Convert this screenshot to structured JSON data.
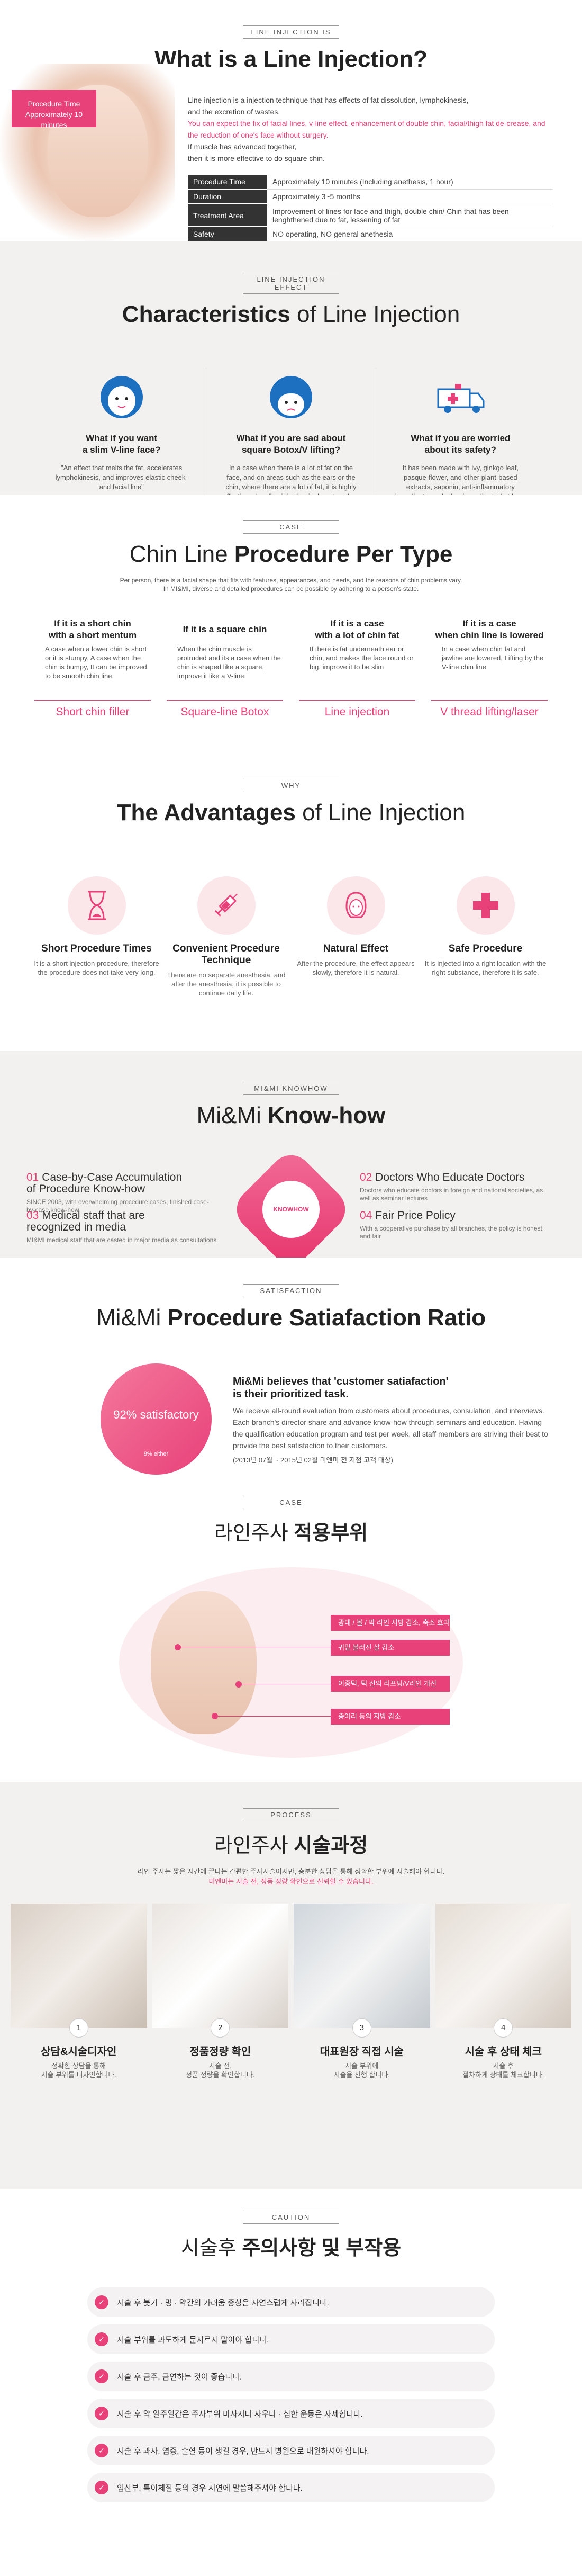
{
  "s1": {
    "tag": "LINE INJECTION IS",
    "title": "What is a Line Injection?",
    "badge_line1": "Procedure Time",
    "badge_line2": "Approximately 10 minutes",
    "intro_1": "Line injection is a injection technique that has effects of fat dissolution, lymphokinesis,",
    "intro_2": "and the excretion of wastes.",
    "intro_3": "You can expect the fix of facial lines, v-line effect, enhancement of double chin, facial/thigh fat de-crease, and the reduction of one's face without surgery.",
    "intro_4": "If muscle has advanced together,",
    "intro_5": "then it is more effective to do square chin.",
    "rows": [
      {
        "k": "Procedure Time",
        "v": "Approximately 10 minutes (Including anethesis, 1 hour)"
      },
      {
        "k": "Duration",
        "v": "Approximately 3~5 months"
      },
      {
        "k": "Treatment Area",
        "v": "Improvement of lines for face and thigh, double chin/ Chin that has been lenghthened due to fat, lessening of fat"
      },
      {
        "k": "Safety",
        "v": "NO operating, NO general anethesia"
      }
    ]
  },
  "s2": {
    "tag": "LINE INJECTION EFFECT",
    "title_b": "Characteristics",
    "title_r": " of Line Injection",
    "cols": [
      {
        "h1": "What if you want",
        "h2": "a slim V-line face?",
        "p": "\"An effect that melts the fat, accelerates lymphokinesis, and improves elastic cheek-and facial line\""
      },
      {
        "h1": "What if you are sad about",
        "h2": "square Botox/V lifting?",
        "p": "In a case when there is a lot of fat on the face, and on areas such as the ears or the chin, where there are a lot of fat, it is highly effective when line injection is done together."
      },
      {
        "h1": "What if you are worried",
        "h2": "about its safety?",
        "p": "It has been made with ivy, ginkgo leaf, pasque-flower, and other plant-based extracts, saponin, anti-inflammatory ingredients, and other ingredients that have been certified and are safe."
      }
    ]
  },
  "s3": {
    "tag": "CASE",
    "title_r": "Chin Line ",
    "title_b": "Procedure Per Type",
    "sub_1": "Per person, there is a facial shape that fits with features, appearances, and needs, and the reasons of chin problems vary.",
    "sub_2": "In MI&MI, diverse and detailed procedures can be possible by adhering to a person's state.",
    "cols": [
      {
        "h1": "If it is a short chin",
        "h2": "with a short mentum",
        "p": "A case when a lower chin is short or it is stumpy, A case when the chin is bumpy, It can be improved to be smooth chin line.",
        "lbl": "Short chin filler"
      },
      {
        "h1": "If it is a square chin",
        "h2": "",
        "p": "When the chin muscle is protruded and its a case when the chin is shaped like a square, improve it like a V-line.",
        "lbl": "Square-line Botox"
      },
      {
        "h1": "If it is a case",
        "h2": "with a lot of chin fat",
        "p": "If there is fat underneath ear or chin, and makes the face round or big, improve it to be slim",
        "lbl": "Line injection"
      },
      {
        "h1": "If it is a case",
        "h2": "when chin line is lowered",
        "p": "In a case when chin fat and jawline are lowered, Lifting by the V-line chin line",
        "lbl": "V thread lifting/laser"
      }
    ]
  },
  "s4": {
    "tag": "WHY",
    "title_b": "The Advantages",
    "title_r": " of Line Injection",
    "cols": [
      {
        "h": "Short Procedure Times",
        "p": "It is a short injection procedure, therefore the procedure does not take very long."
      },
      {
        "h": "Convenient Procedure Technique",
        "p": "There are no separate anesthesia, and after the anesthesia, it is possible to continue daily life."
      },
      {
        "h": "Natural Effect",
        "p": "After the procedure, the effect appears slowly, therefore it is natural."
      },
      {
        "h": "Safe Procedure",
        "p": "It is injected into a right location with the right substance, therefore it is safe."
      }
    ]
  },
  "s5": {
    "tag": "MI&MI KNOWHOW",
    "title_r": "Mi&Mi ",
    "title_b": "Know-how",
    "center": "KNOWHOW",
    "items": [
      {
        "n": "01",
        "t1": "Case-by-Case Accumulation",
        "t2": "of Procedure Know-how",
        "d": "SINCE 2003, with overwhelming procedure cases, finished case-by-case know-how"
      },
      {
        "n": "02",
        "t1": "Doctors Who Educate Doctors",
        "t2": "",
        "d": "Doctors who educate doctors in foreign and national societies, as well as seminar lectures"
      },
      {
        "n": "03",
        "t1": "Medical staff that are",
        "t2": "recognized in media",
        "d": "MI&MI medical staff that are casted in major media as consultations"
      },
      {
        "n": "04",
        "t1": "Fair Price Policy",
        "t2": "",
        "d": "With a cooperative purchase by all branches, the policy is honest and fair"
      }
    ]
  },
  "s6": {
    "tag": "SATISFACTION",
    "title_r": "Mi&Mi ",
    "title_b": "Procedure Satiafaction Ratio",
    "circle_big": "92% satisfactory",
    "circle_small": "8% either",
    "h3_1": "Mi&Mi believes that 'customer satiafaction'",
    "h3_2": "is their prioritized task.",
    "p": "We receive all-round evaluation from customers about procedures, consulation, and interviews. Each branch's director share and advance know-how through seminars and education. Having the qualification education program and test per week, all staff members are striving their best to provide the best satisfaction to their customers.",
    "note": "(2013년 07월 ~ 2015년 02월 미엔미 전 지점 고객 대상)"
  },
  "s7": {
    "tag": "CASE",
    "title_r": "라인주사 ",
    "title_b": "적용부위",
    "pills": [
      "광대 / 볼 / 팍 라인 지방 감소, 축소 효과",
      "귀밑 불러진 살 감소",
      "이중턱, 턱 선의 리프팅/V라인 개선",
      "종아리 등의 지방 감소"
    ]
  },
  "s8": {
    "tag": "PROCESS",
    "title_r": "라인주사 ",
    "title_b": "시술과정",
    "sub_1": "라인 주사는 짧은 시간에 끝나는 간편한 주사시술이지만, 충분한 상담을 통해 정확한 부위에 시술해야 합니다.",
    "sub_2": "미엔미는 시술 전, 정품 정량 확인으로 신뢰할 수 있습니다.",
    "steps": [
      {
        "n": "1",
        "h": "상담&시술디자인",
        "p1": "정확한 상담을 통해",
        "p2": "시술 부위를 디자인합니다."
      },
      {
        "n": "2",
        "h": "정품정량 확인",
        "p1": "시술 전,",
        "p2": "정품 정량을 확인합니다."
      },
      {
        "n": "3",
        "h": "대표원장 직접 시술",
        "p1": "시술 부위에",
        "p2": "시술을 진행 합니다."
      },
      {
        "n": "4",
        "h": "시술 후 상태 체크",
        "p1": "시술 후",
        "p2": "절차하게 상태를 체크합니다."
      }
    ]
  },
  "s9": {
    "tag": "CAUTION",
    "title_r": "시술후 ",
    "title_b": "주의사항 및 부작용",
    "items": [
      "시술 후 붓기 · 멍 · 약간의 가려움 증상은 자연스럽게 사라집니다.",
      "시술 부위를 과도하게 문지르지 말아야 합니다.",
      "시술 후 금주, 금연하는 것이 좋습니다.",
      "시술 후 약 일주일간은 주사부위 마사지나 사우나 · 심한 운동은 자제합니다.",
      "시술 후 과사, 염증, 출혈 등이 생길 경우, 반드시 병원으로 내원하셔야 합니다.",
      "임산부, 특이체질 등의 경우 시연에 말씀해주셔야 합니다."
    ]
  }
}
